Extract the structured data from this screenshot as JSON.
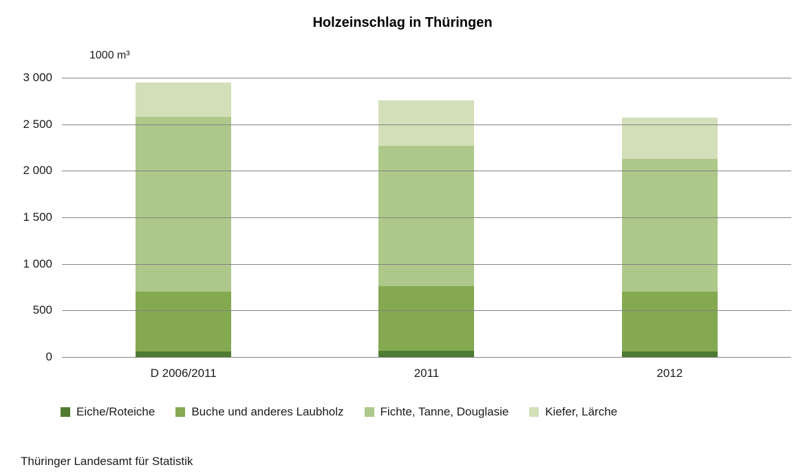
{
  "chart_data": {
    "type": "bar",
    "stacked": true,
    "title": "Holzeinschlag in Thüringen",
    "unit_label": "1000 m³",
    "categories": [
      "D 2006/2011",
      "2011",
      "2012"
    ],
    "series": [
      {
        "name": "Eiche/Roteiche",
        "color": "#4f7b32",
        "values": [
          60,
          70,
          60
        ]
      },
      {
        "name": "Buche und anderes Laubholz",
        "color": "#85a951",
        "values": [
          640,
          690,
          640
        ]
      },
      {
        "name": "Fichte, Tanne, Douglasie",
        "color": "#adc88a",
        "values": [
          1880,
          1510,
          1430
        ]
      },
      {
        "name": "Kiefer, Lärche",
        "color": "#d3dfb8",
        "values": [
          370,
          490,
          440
        ]
      }
    ],
    "totals": [
      2950,
      2760,
      2570
    ],
    "ylim": [
      0,
      3000
    ],
    "ytick_step": 500,
    "ytick_labels": [
      "0",
      "500",
      "1 000",
      "1 500",
      "2 000",
      "2 500",
      "3 000"
    ],
    "grid": "horizontal",
    "legend_position": "bottom",
    "source": "Thüringer Landesamt für Statistik"
  }
}
